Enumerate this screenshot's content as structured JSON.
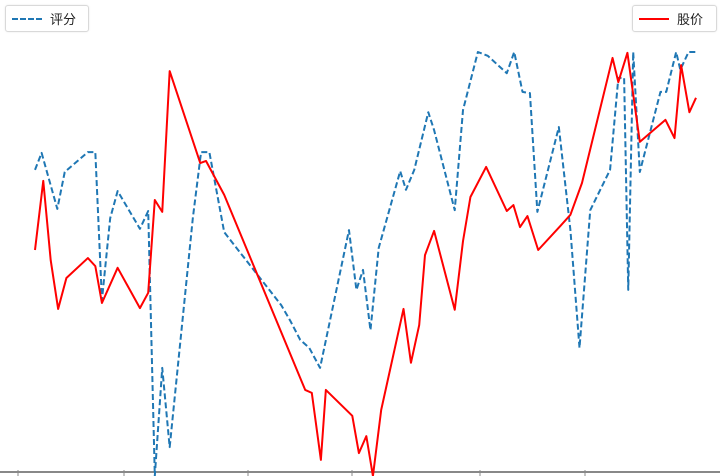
{
  "chart_data": {
    "type": "line",
    "title": "",
    "xlabel": "",
    "ylabel": "",
    "xlim": [
      0,
      80
    ],
    "ylim": [
      0,
      100
    ],
    "grid": false,
    "legend_placement": [
      "top-left",
      "top-right"
    ],
    "series": [
      {
        "name": "评分",
        "color": "#1f77b4",
        "style": "dashed",
        "legend": "top-left",
        "points": [
          [
            0,
            72.2
          ],
          [
            0.8,
            76.2
          ],
          [
            2.7,
            63.0
          ],
          [
            3.6,
            71.7
          ],
          [
            6.4,
            76.4
          ],
          [
            7.3,
            76.4
          ],
          [
            8.1,
            41.5
          ],
          [
            9.1,
            60.8
          ],
          [
            10.0,
            67.2
          ],
          [
            12.7,
            58.3
          ],
          [
            13.7,
            62.5
          ],
          [
            14.5,
            0
          ],
          [
            15.4,
            25.5
          ],
          [
            16.3,
            6.8
          ],
          [
            19.1,
            60.8
          ],
          [
            20.1,
            76.4
          ],
          [
            21.1,
            76.4
          ],
          [
            22.9,
            57.5
          ],
          [
            29.8,
            40.3
          ],
          [
            30.9,
            36.6
          ],
          [
            32.1,
            32.1
          ],
          [
            33.2,
            30.2
          ],
          [
            34.5,
            25.5
          ],
          [
            38.0,
            58.0
          ],
          [
            38.9,
            43.9
          ],
          [
            39.7,
            48.6
          ],
          [
            40.6,
            34.4
          ],
          [
            41.6,
            53.8
          ],
          [
            44.2,
            71.9
          ],
          [
            44.9,
            67.5
          ],
          [
            45.9,
            72.2
          ],
          [
            47.6,
            85.8
          ],
          [
            48.3,
            81.6
          ],
          [
            50.8,
            62.7
          ],
          [
            51.8,
            86.3
          ],
          [
            53.6,
            100
          ],
          [
            54.8,
            99.1
          ],
          [
            57.1,
            95.0
          ],
          [
            58.0,
            100
          ],
          [
            59.0,
            90.6
          ],
          [
            59.9,
            90.3
          ],
          [
            60.8,
            62.3
          ],
          [
            63.4,
            82.3
          ],
          [
            64.8,
            58.0
          ],
          [
            65.9,
            30.2
          ],
          [
            67.2,
            62.7
          ],
          [
            69.6,
            72.2
          ],
          [
            70.6,
            93.9
          ],
          [
            71.3,
            93.9
          ],
          [
            71.8,
            43.9
          ],
          [
            72.4,
            100
          ],
          [
            73.2,
            71.7
          ],
          [
            75.7,
            90.6
          ],
          [
            76.4,
            90.6
          ],
          [
            77.6,
            100
          ],
          [
            78.1,
            95.8
          ],
          [
            79.1,
            100
          ],
          [
            80.0,
            100
          ]
        ]
      },
      {
        "name": "股价",
        "color": "#ff0000",
        "style": "solid",
        "legend": "top-right",
        "points": [
          [
            0,
            53.3
          ],
          [
            1.0,
            69.6
          ],
          [
            1.9,
            50.9
          ],
          [
            2.8,
            39.4
          ],
          [
            3.8,
            46.7
          ],
          [
            6.4,
            51.4
          ],
          [
            7.3,
            49.5
          ],
          [
            8.1,
            40.8
          ],
          [
            10.0,
            49.1
          ],
          [
            12.7,
            39.6
          ],
          [
            13.7,
            43.2
          ],
          [
            14.5,
            65.1
          ],
          [
            15.4,
            62.3
          ],
          [
            16.3,
            95.5
          ],
          [
            20.0,
            73.8
          ],
          [
            20.7,
            74.3
          ],
          [
            22.9,
            66.3
          ],
          [
            32.7,
            20.3
          ],
          [
            33.5,
            19.6
          ],
          [
            34.6,
            3.8
          ],
          [
            35.2,
            20.3
          ],
          [
            38.4,
            14.2
          ],
          [
            39.2,
            5.4
          ],
          [
            40.1,
            9.4
          ],
          [
            40.9,
            0
          ],
          [
            41.9,
            15.6
          ],
          [
            44.6,
            39.4
          ],
          [
            45.5,
            26.7
          ],
          [
            46.5,
            35.6
          ],
          [
            47.2,
            52.1
          ],
          [
            48.3,
            57.8
          ],
          [
            50.8,
            39.2
          ],
          [
            51.8,
            55.4
          ],
          [
            52.7,
            65.8
          ],
          [
            54.6,
            72.9
          ],
          [
            57.1,
            62.5
          ],
          [
            57.9,
            63.9
          ],
          [
            58.7,
            58.7
          ],
          [
            59.6,
            61.3
          ],
          [
            60.9,
            53.3
          ],
          [
            63.6,
            59.0
          ],
          [
            64.8,
            61.6
          ],
          [
            66.2,
            69.1
          ],
          [
            69.9,
            98.6
          ],
          [
            70.6,
            92.9
          ],
          [
            71.7,
            99.8
          ],
          [
            73.2,
            78.8
          ],
          [
            76.3,
            84.0
          ],
          [
            77.4,
            79.7
          ],
          [
            78.2,
            96.9
          ],
          [
            79.2,
            85.8
          ],
          [
            80.0,
            89.2
          ]
        ]
      }
    ]
  }
}
